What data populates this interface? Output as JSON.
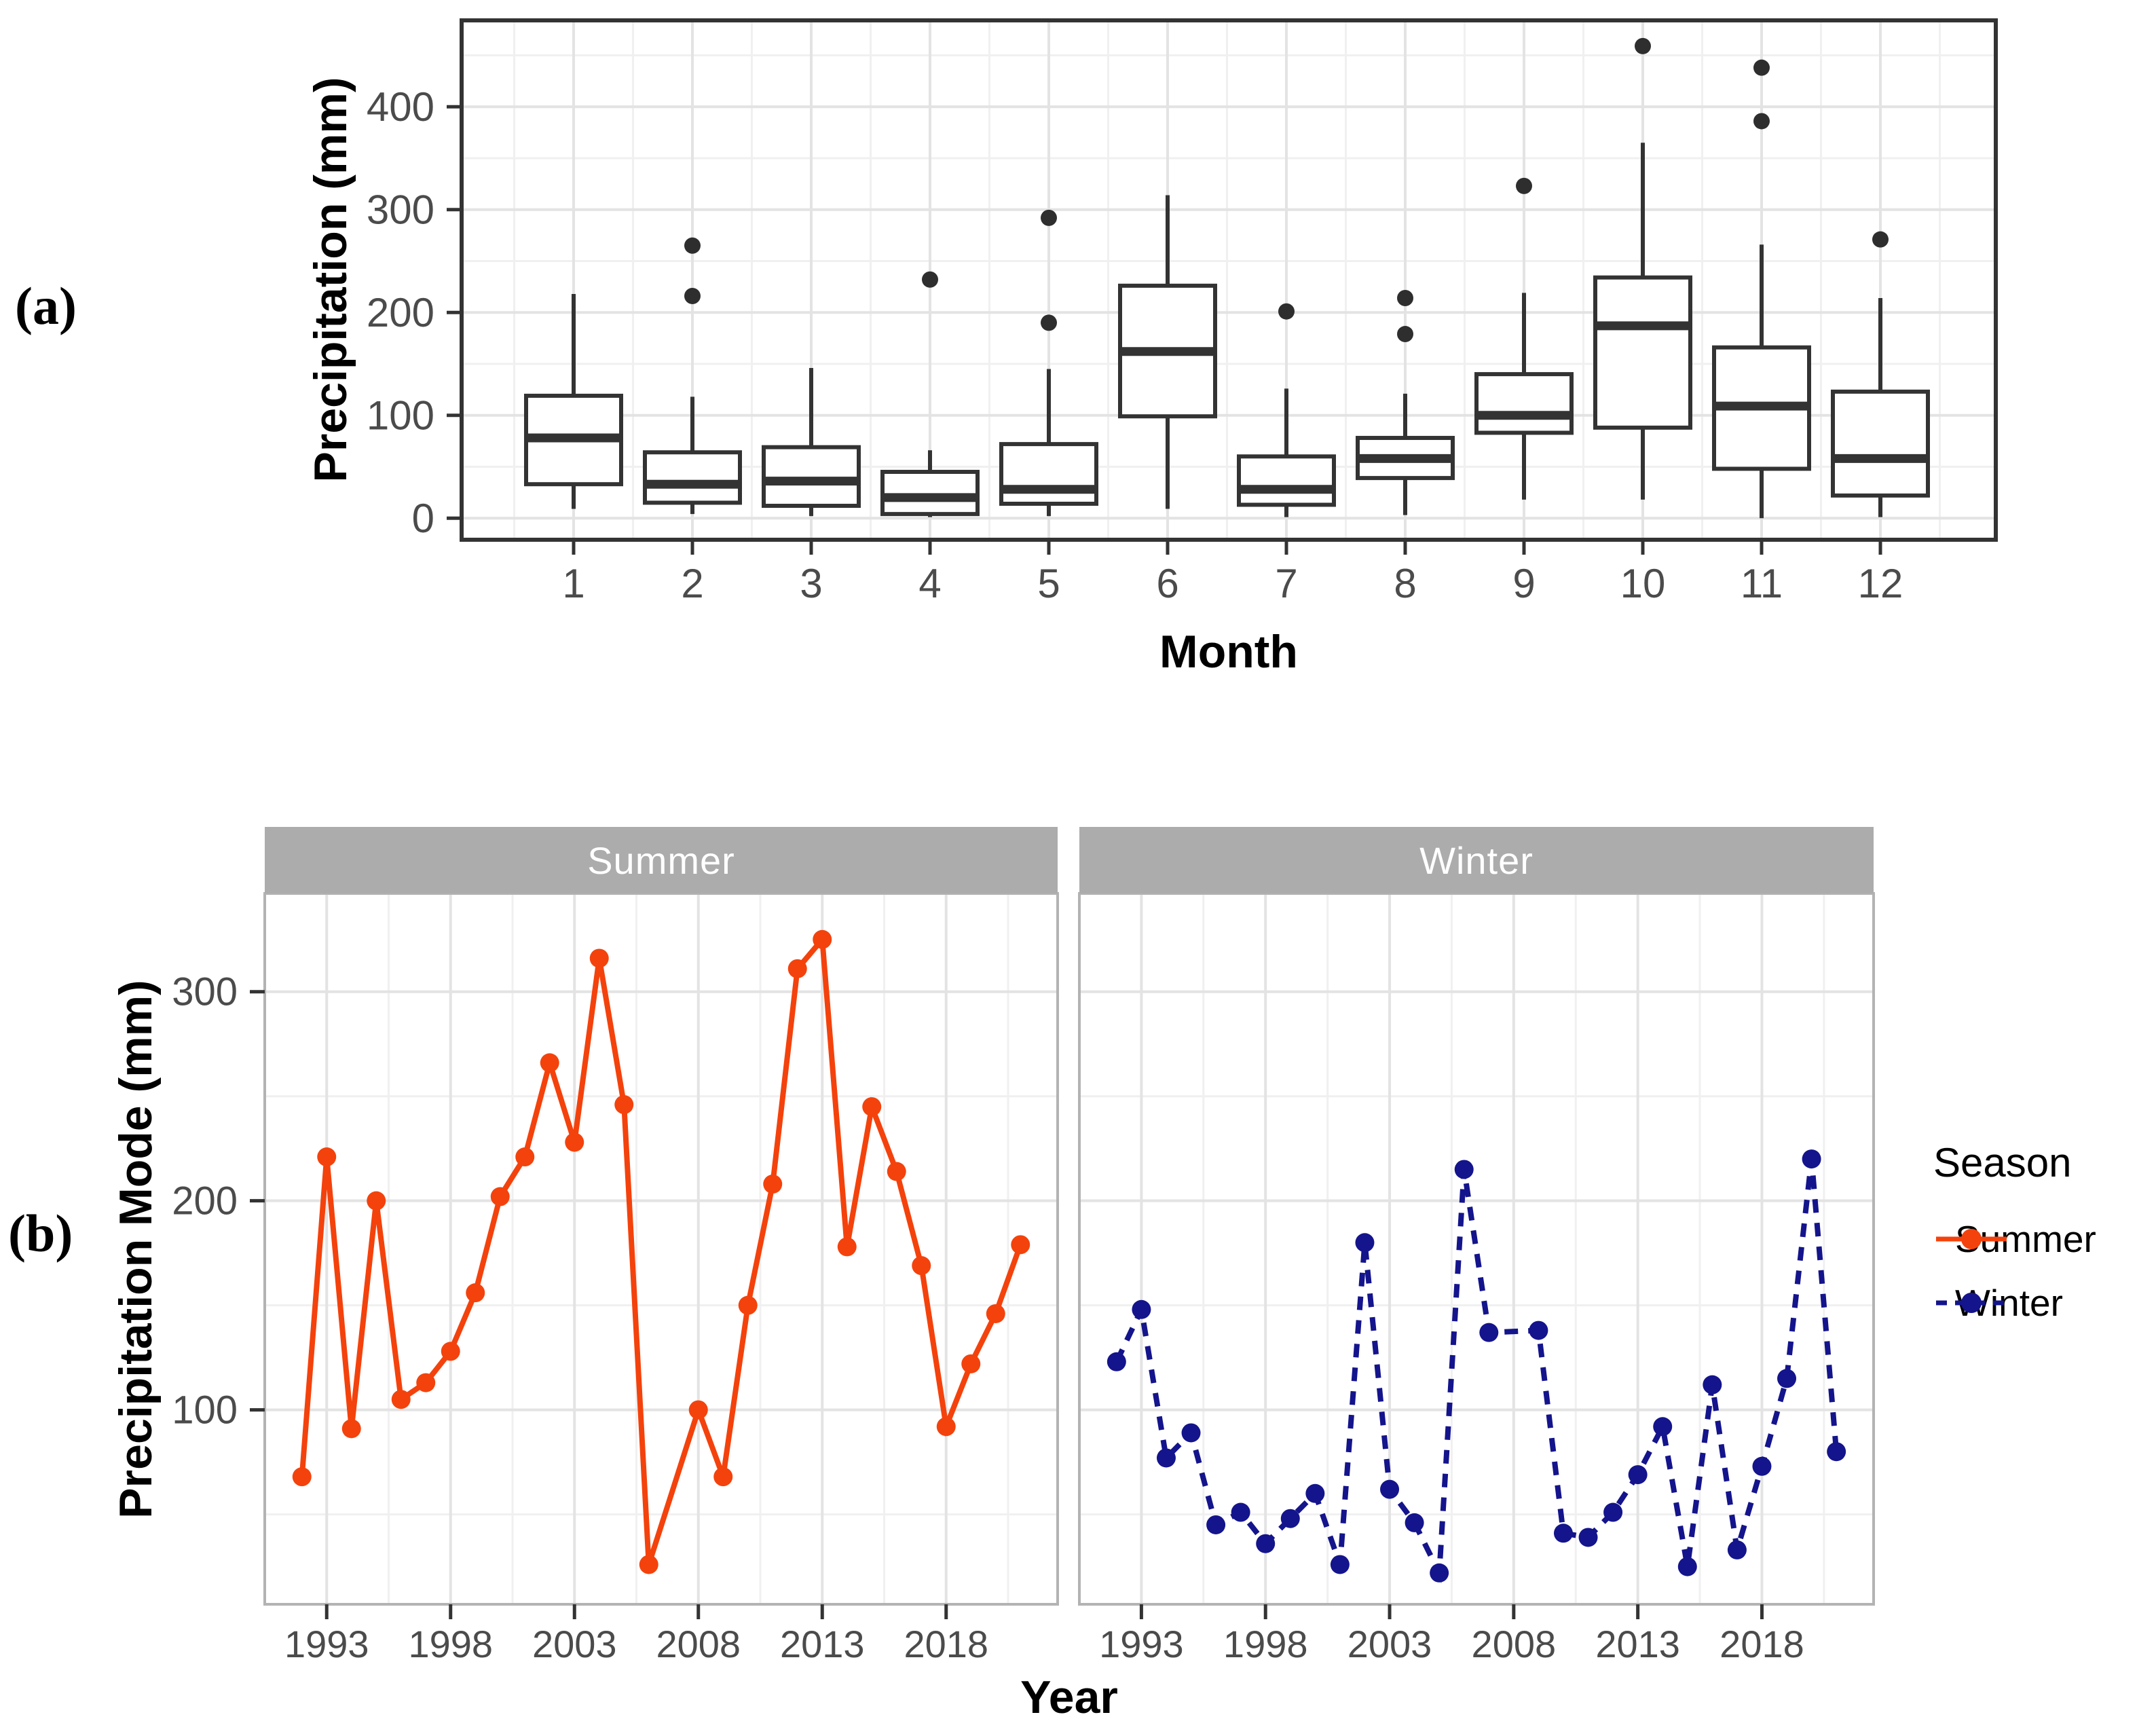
{
  "figure": {
    "panel_a_label": "(a)",
    "panel_b_label": "(b)"
  },
  "chart_data": [
    {
      "id": "panel-a",
      "type": "boxplot",
      "title": "",
      "xlabel": "Month",
      "ylabel": "Precipitation (mm)",
      "categories": [
        "1",
        "2",
        "3",
        "4",
        "5",
        "6",
        "7",
        "8",
        "9",
        "10",
        "11",
        "12"
      ],
      "yticks": [
        0,
        100,
        200,
        300,
        400
      ],
      "yminor": [
        50,
        150,
        250,
        350,
        450
      ],
      "ylim": [
        -21,
        484
      ],
      "grid": true,
      "box_color": "#333333",
      "boxes": [
        {
          "month": "1",
          "whisker_low": 9,
          "q1": 33,
          "median": 78,
          "q3": 119,
          "whisker_high": 218,
          "outliers": []
        },
        {
          "month": "2",
          "whisker_low": 4,
          "q1": 15,
          "median": 33,
          "q3": 64,
          "whisker_high": 118,
          "outliers": [
            216,
            265
          ]
        },
        {
          "month": "3",
          "whisker_low": 2,
          "q1": 12,
          "median": 36,
          "q3": 69,
          "whisker_high": 146,
          "outliers": []
        },
        {
          "month": "4",
          "whisker_low": 1,
          "q1": 4,
          "median": 20,
          "q3": 45,
          "whisker_high": 66,
          "outliers": [
            232
          ]
        },
        {
          "month": "5",
          "whisker_low": 2,
          "q1": 14,
          "median": 28,
          "q3": 72,
          "whisker_high": 145,
          "outliers": [
            190,
            292
          ]
        },
        {
          "month": "6",
          "whisker_low": 9,
          "q1": 99,
          "median": 162,
          "q3": 226,
          "whisker_high": 314,
          "outliers": []
        },
        {
          "month": "7",
          "whisker_low": 1,
          "q1": 13,
          "median": 28,
          "q3": 60,
          "whisker_high": 126,
          "outliers": [
            201
          ]
        },
        {
          "month": "8",
          "whisker_low": 3,
          "q1": 39,
          "median": 58,
          "q3": 78,
          "whisker_high": 121,
          "outliers": [
            179,
            214
          ]
        },
        {
          "month": "9",
          "whisker_low": 18,
          "q1": 83,
          "median": 100,
          "q3": 140,
          "whisker_high": 219,
          "outliers": [
            323
          ]
        },
        {
          "month": "10",
          "whisker_low": 18,
          "q1": 88,
          "median": 187,
          "q3": 234,
          "whisker_high": 365,
          "outliers": [
            459
          ]
        },
        {
          "month": "11",
          "whisker_low": 0,
          "q1": 48,
          "median": 109,
          "q3": 166,
          "whisker_high": 266,
          "outliers": [
            386,
            438
          ]
        },
        {
          "month": "12",
          "whisker_low": 1,
          "q1": 22,
          "median": 58,
          "q3": 123,
          "whisker_high": 214,
          "outliers": [
            271
          ]
        }
      ]
    },
    {
      "id": "panel-b",
      "type": "line",
      "title": "",
      "xlabel": "Year",
      "ylabel": "Precipitation Mode (mm)",
      "facets": [
        "Summer",
        "Winter"
      ],
      "strip_color": "#ACACAC",
      "xticks": [
        1993,
        1998,
        2003,
        2008,
        2013,
        2018
      ],
      "xminor": [
        1995.5,
        2000.5,
        2005.5,
        2010.5,
        2015.5,
        2020.5
      ],
      "yticks": [
        100,
        200,
        300
      ],
      "yminor": [
        50,
        150,
        250
      ],
      "xlim": [
        1990.5,
        2022.5
      ],
      "ylim": [
        7,
        347
      ],
      "legend": {
        "title": "Season",
        "position": "right"
      },
      "series": [
        {
          "name": "Summer",
          "facet": "Summer",
          "color": "#F4420C",
          "line": "solid",
          "marker": "circle",
          "points": [
            [
              1992,
              68
            ],
            [
              1993,
              221
            ],
            [
              1994,
              91
            ],
            [
              1995,
              200
            ],
            [
              1996,
              105
            ],
            [
              1997,
              113
            ],
            [
              1998,
              128
            ],
            [
              1999,
              156
            ],
            [
              2000,
              202
            ],
            [
              2001,
              221
            ],
            [
              2002,
              266
            ],
            [
              2003,
              228
            ],
            [
              2004,
              316
            ],
            [
              2005,
              246
            ],
            [
              2006,
              26
            ],
            [
              2008,
              100
            ],
            [
              2009,
              68
            ],
            [
              2010,
              150
            ],
            [
              2011,
              208
            ],
            [
              2012,
              311
            ],
            [
              2013,
              325
            ],
            [
              2014,
              178
            ],
            [
              2015,
              245
            ],
            [
              2016,
              214
            ],
            [
              2017,
              169
            ],
            [
              2018,
              92
            ],
            [
              2019,
              122
            ],
            [
              2020,
              146
            ],
            [
              2021,
              179
            ]
          ]
        },
        {
          "name": "Winter",
          "facet": "Winter",
          "color": "#14148C",
          "line": "dashed",
          "marker": "circle",
          "points": [
            [
              1992,
              123
            ],
            [
              1993,
              148
            ],
            [
              1994,
              77
            ],
            [
              1995,
              89
            ],
            [
              1996,
              45
            ],
            [
              1997,
              51
            ],
            [
              1998,
              36
            ],
            [
              1999,
              48
            ],
            [
              2000,
              60
            ],
            [
              2001,
              26
            ],
            [
              2002,
              180
            ],
            [
              2003,
              62
            ],
            [
              2004,
              46
            ],
            [
              2005,
              22
            ],
            [
              2006,
              215
            ],
            [
              2007,
              137
            ],
            [
              2009,
              138
            ],
            [
              2010,
              41
            ],
            [
              2011,
              39
            ],
            [
              2012,
              51
            ],
            [
              2013,
              69
            ],
            [
              2014,
              92
            ],
            [
              2015,
              25
            ],
            [
              2016,
              112
            ],
            [
              2017,
              33
            ],
            [
              2018,
              73
            ],
            [
              2019,
              115
            ],
            [
              2020,
              220
            ],
            [
              2021,
              80
            ]
          ]
        }
      ]
    }
  ]
}
